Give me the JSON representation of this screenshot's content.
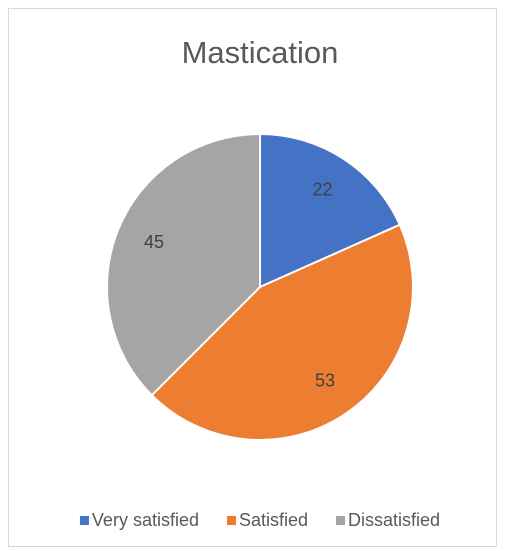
{
  "chart_data": {
    "type": "pie",
    "title": "Mastication",
    "categories": [
      "Very satisfied",
      "Satisfied",
      "Dissatisfied"
    ],
    "values": [
      22,
      53,
      45
    ],
    "colors": [
      "#4472c4",
      "#ed7d31",
      "#a5a5a5"
    ],
    "legend": "bottom"
  }
}
